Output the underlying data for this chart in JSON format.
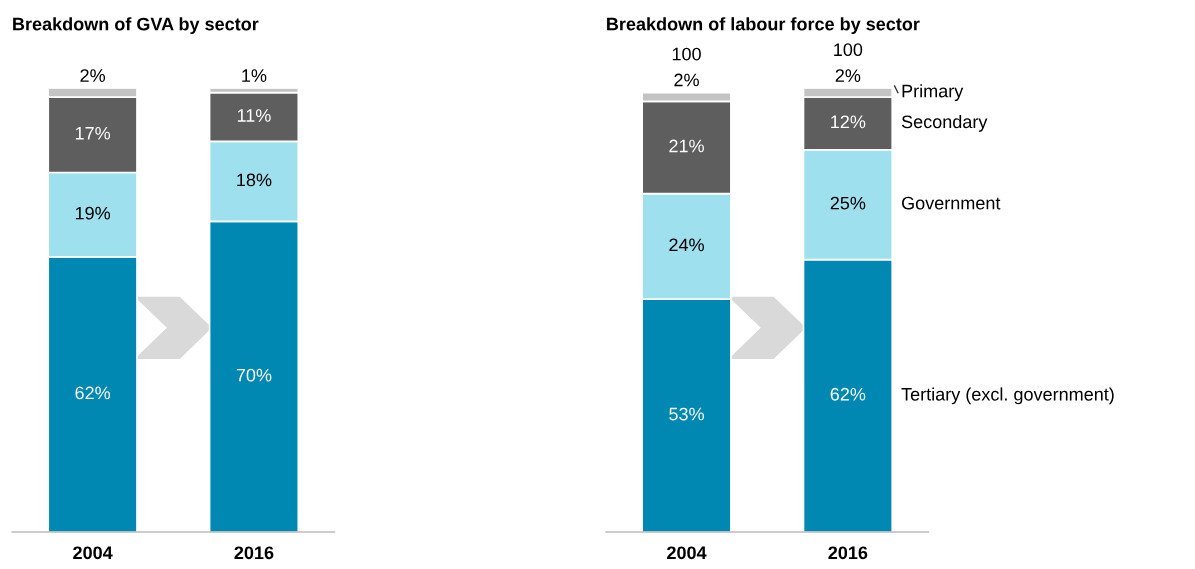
{
  "chart_data": [
    {
      "type": "bar",
      "title": "Breakdown of GVA by sector",
      "categories": [
        "2004",
        "2016"
      ],
      "stacked": true,
      "series": [
        {
          "color": "#0088b3",
          "values": [
            62,
            70
          ],
          "value_labels": [
            "62%",
            "70%"
          ]
        },
        {
          "color": "#9ee0ee",
          "values": [
            19,
            18
          ],
          "value_labels": [
            "19%",
            "18%"
          ]
        },
        {
          "color": "#5e5e5e",
          "values": [
            17,
            11
          ],
          "value_labels": [
            "17%",
            "11%"
          ]
        },
        {
          "color": "#c3c3c3",
          "values": [
            2,
            1
          ],
          "value_labels": [
            "2%",
            "1%"
          ]
        }
      ]
    },
    {
      "type": "bar",
      "title": "Breakdown of labour force by sector",
      "categories": [
        "2004",
        "2016"
      ],
      "stacked": true,
      "totals": [
        "100",
        "100"
      ],
      "series": [
        {
          "name": "Tertiary (excl. government)",
          "color": "#0088b3",
          "values": [
            53,
            62
          ],
          "value_labels": [
            "53%",
            "62%"
          ]
        },
        {
          "name": "Government",
          "color": "#9ee0ee",
          "values": [
            24,
            25
          ],
          "value_labels": [
            "24%",
            "25%"
          ]
        },
        {
          "name": "Secondary",
          "color": "#5e5e5e",
          "values": [
            21,
            12
          ],
          "value_labels": [
            "21%",
            "12%"
          ]
        },
        {
          "name": "Primary",
          "color": "#c3c3c3",
          "values": [
            2,
            2
          ],
          "value_labels": [
            "2%",
            "2%"
          ]
        }
      ]
    }
  ]
}
